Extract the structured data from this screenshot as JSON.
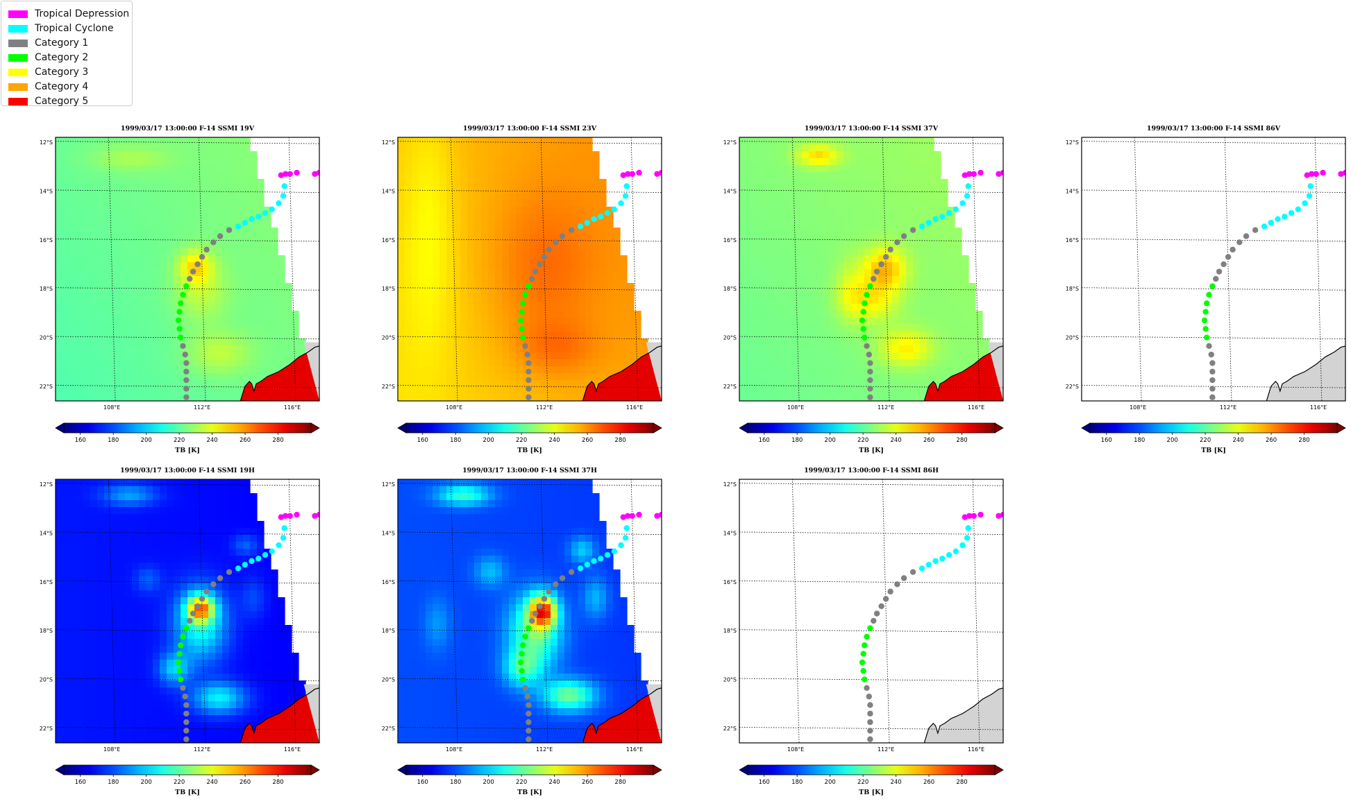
{
  "legend": {
    "items": [
      {
        "label": "Tropical Depression",
        "color": "#ff00ff"
      },
      {
        "label": "Tropical Cyclone",
        "color": "#00ffff"
      },
      {
        "label": "Category 1",
        "color": "#808080"
      },
      {
        "label": "Category 2",
        "color": "#00ff00"
      },
      {
        "label": "Category 3",
        "color": "#ffff00"
      },
      {
        "label": "Category 4",
        "color": "#ffa500"
      },
      {
        "label": "Category 5",
        "color": "#ff0000"
      }
    ]
  },
  "chart_data": [
    {
      "type": "heatmap",
      "title": "1999/03/17 13:00:00  F-14 SSMI 19V",
      "field": "19V"
    },
    {
      "type": "heatmap",
      "title": "1999/03/17 13:00:00  F-14 SSMI 23V",
      "field": "23V"
    },
    {
      "type": "heatmap",
      "title": "1999/03/17 13:00:00  F-14 SSMI 37V",
      "field": "37V"
    },
    {
      "type": "heatmap",
      "title": "1999/03/17 13:00:00  F-14 SSMI 86V",
      "field": "none"
    },
    {
      "type": "heatmap",
      "title": "1999/03/17 13:00:00  F-14 SSMI 19H",
      "field": "19H"
    },
    {
      "type": "heatmap",
      "title": "1999/03/17 13:00:00  F-14 SSMI 37H",
      "field": "37H"
    },
    {
      "type": "heatmap",
      "title": "1999/03/17 13:00:00  F-14 SSMI 86H",
      "field": "none"
    }
  ],
  "map": {
    "lat_ticks": [
      "12°S",
      "14°S",
      "16°S",
      "18°S",
      "20°S",
      "22°S"
    ],
    "lon_ticks": [
      "108°E",
      "112°E",
      "116°E"
    ],
    "lat_range": [
      -22.6,
      -11.8
    ],
    "lon_range": [
      105.5,
      117.2
    ],
    "land_color": "#d3d3d3"
  },
  "colorbar": {
    "label": "TB [K]",
    "ticks": [
      "160",
      "180",
      "200",
      "220",
      "240",
      "260",
      "280"
    ],
    "range": [
      150,
      300
    ],
    "colormap": "jet",
    "extend": "both"
  },
  "track": [
    {
      "lon": 115.7,
      "lat": -13.3,
      "cat": "Tropical Depression"
    },
    {
      "lon": 115.5,
      "lat": -13.35,
      "cat": "Tropical Depression"
    },
    {
      "lon": 115.9,
      "lat": -13.3,
      "cat": "Tropical Depression"
    },
    {
      "lon": 116.2,
      "lat": -13.25,
      "cat": "Tropical Depression"
    },
    {
      "lon": 117.2,
      "lat": -13.25,
      "cat": "Tropical Depression"
    },
    {
      "lon": 117.0,
      "lat": -13.3,
      "cat": "Tropical Depression"
    },
    {
      "lon": 115.65,
      "lat": -13.8,
      "cat": "Tropical Cyclone"
    },
    {
      "lon": 115.6,
      "lat": -14.2,
      "cat": "Tropical Cyclone"
    },
    {
      "lon": 115.4,
      "lat": -14.5,
      "cat": "Tropical Cyclone"
    },
    {
      "lon": 115.1,
      "lat": -14.75,
      "cat": "Tropical Cyclone"
    },
    {
      "lon": 114.8,
      "lat": -14.9,
      "cat": "Tropical Cyclone"
    },
    {
      "lon": 114.5,
      "lat": -15.05,
      "cat": "Tropical Cyclone"
    },
    {
      "lon": 114.2,
      "lat": -15.15,
      "cat": "Tropical Cyclone"
    },
    {
      "lon": 113.9,
      "lat": -15.3,
      "cat": "Tropical Cyclone"
    },
    {
      "lon": 113.6,
      "lat": -15.45,
      "cat": "Tropical Cyclone"
    },
    {
      "lon": 113.2,
      "lat": -15.6,
      "cat": "Category 1"
    },
    {
      "lon": 112.8,
      "lat": -15.85,
      "cat": "Category 1"
    },
    {
      "lon": 112.5,
      "lat": -16.1,
      "cat": "Category 1"
    },
    {
      "lon": 112.2,
      "lat": -16.4,
      "cat": "Category 1"
    },
    {
      "lon": 112.0,
      "lat": -16.7,
      "cat": "Category 1"
    },
    {
      "lon": 111.8,
      "lat": -17.0,
      "cat": "Category 1"
    },
    {
      "lon": 111.6,
      "lat": -17.3,
      "cat": "Category 1"
    },
    {
      "lon": 111.45,
      "lat": -17.6,
      "cat": "Category 1"
    },
    {
      "lon": 111.3,
      "lat": -17.9,
      "cat": "Category 2"
    },
    {
      "lon": 111.15,
      "lat": -18.25,
      "cat": "Category 2"
    },
    {
      "lon": 111.05,
      "lat": -18.6,
      "cat": "Category 2"
    },
    {
      "lon": 111.0,
      "lat": -18.95,
      "cat": "Category 2"
    },
    {
      "lon": 110.95,
      "lat": -19.3,
      "cat": "Category 2"
    },
    {
      "lon": 111.0,
      "lat": -19.65,
      "cat": "Category 2"
    },
    {
      "lon": 111.05,
      "lat": -20.0,
      "cat": "Category 2"
    },
    {
      "lon": 111.15,
      "lat": -20.35,
      "cat": "Category 1"
    },
    {
      "lon": 111.25,
      "lat": -20.7,
      "cat": "Category 1"
    },
    {
      "lon": 111.3,
      "lat": -21.05,
      "cat": "Category 1"
    },
    {
      "lon": 111.3,
      "lat": -21.4,
      "cat": "Category 1"
    },
    {
      "lon": 111.3,
      "lat": -21.75,
      "cat": "Category 1"
    },
    {
      "lon": 111.3,
      "lat": -22.1,
      "cat": "Category 1"
    },
    {
      "lon": 111.3,
      "lat": -22.45,
      "cat": "Category 1"
    }
  ]
}
